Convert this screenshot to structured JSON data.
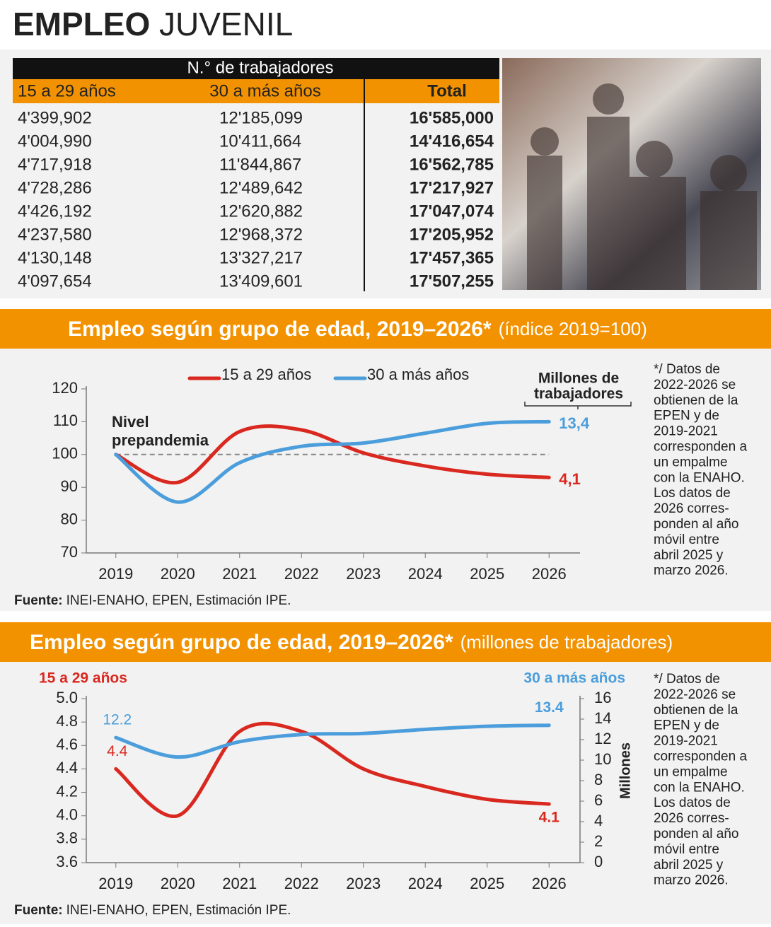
{
  "title": {
    "bold": "EMPLEO",
    "light": "JUVENIL"
  },
  "table": {
    "header": "N.° de trabajadores",
    "columns": [
      "15 a 29 años",
      "30 a más años",
      "Total"
    ],
    "rows": [
      [
        "4'399,902",
        "12'185,099",
        "16'585,000"
      ],
      [
        "4'004,990",
        "10'411,664",
        "14'416,654"
      ],
      [
        "4'717,918",
        "11'844,867",
        "16'562,785"
      ],
      [
        "4'728,286",
        "12'489,642",
        "17'217,927"
      ],
      [
        "4'426,192",
        "12'620,882",
        "17'047,074"
      ],
      [
        "4'237,580",
        "12'968,372",
        "17'205,952"
      ],
      [
        "4'130,148",
        "13'327,217",
        "17'457,365"
      ],
      [
        "4'097,654",
        "13'409,601",
        "17'507,255"
      ]
    ]
  },
  "chart_data": [
    {
      "type": "line",
      "title": "Empleo según grupo de edad, 2019–2026*",
      "subtitle": "(índice 2019=100)",
      "x": [
        2019,
        2020,
        2021,
        2022,
        2023,
        2024,
        2025,
        2026
      ],
      "xlim": [
        2018.5,
        2026.5
      ],
      "xticks": [
        2019,
        2020,
        2021,
        2022,
        2023,
        2024,
        2025,
        2026
      ],
      "ylim": [
        70,
        120
      ],
      "yticks": [
        70,
        80,
        90,
        100,
        110,
        120
      ],
      "reference_line": 100,
      "reference_label": [
        "Nivel",
        "prepandemia"
      ],
      "units_label": [
        "Millones de",
        "trabajadores"
      ],
      "series": [
        {
          "name": "15 a 29 años",
          "color": "#d9281f",
          "values": [
            100,
            91.5,
            107,
            107.5,
            100.5,
            96.5,
            94,
            93
          ],
          "end_label": "4,1"
        },
        {
          "name": "30 a más años",
          "color": "#4b9edb",
          "values": [
            100,
            85.5,
            97.5,
            102.5,
            103.5,
            106.5,
            109.5,
            110
          ],
          "end_label": "13,4"
        }
      ],
      "note": [
        "*/ Datos de",
        "2022-2026 se",
        "obtienen de la",
        "EPEN y de",
        "2019-2021",
        "corresponden a",
        "un empalme",
        "con la ENAHO.",
        "Los datos de",
        "2026 corres-",
        "ponden al año",
        "móvil entre",
        "abril 2025 y",
        "marzo 2026."
      ],
      "source_label": "Fuente:",
      "source": "INEI-ENAHO, EPEN, Estimación IPE."
    },
    {
      "type": "line",
      "title": "Empleo según grupo de edad, 2019–2026*",
      "subtitle": "(millones de trabajadores)",
      "x": [
        2019,
        2020,
        2021,
        2022,
        2023,
        2024,
        2025,
        2026
      ],
      "xlim": [
        2018.5,
        2026.5
      ],
      "xticks": [
        2019,
        2020,
        2021,
        2022,
        2023,
        2024,
        2025,
        2026
      ],
      "ylim": [
        3.6,
        5.0
      ],
      "yticks": [
        3.6,
        3.8,
        {
          "value": 4,
          "label": "4.0"
        },
        4.2,
        4.4,
        4.6,
        4.8,
        {
          "value": 5,
          "label": "5.0"
        }
      ],
      "ylabel": "15 a 29 años",
      "y2lim": [
        0,
        16
      ],
      "y2ticks": [
        0,
        2,
        4,
        6,
        8,
        10,
        12,
        14,
        16
      ],
      "y2label": "30 a más años",
      "y2title": "Millones",
      "series": [
        {
          "name": "15 a 29 años",
          "color": "#d9281f",
          "values": [
            4.4,
            4.0,
            4.72,
            4.72,
            4.4,
            4.25,
            4.14,
            4.1
          ]
        },
        {
          "name": "30 a más años",
          "color": "#4b9edb",
          "axis": "y2",
          "values": [
            12.2,
            10.3,
            11.8,
            12.5,
            12.6,
            13.0,
            13.3,
            13.4
          ]
        }
      ],
      "note": [
        "*/ Datos de",
        "2022-2026 se",
        "obtienen de la",
        "EPEN y de",
        "2019-2021",
        "corresponden a",
        "un empalme",
        "con la ENAHO.",
        "Los datos de",
        "2026 corres-",
        "ponden al año",
        "móvil entre",
        "abril 2025 y",
        "marzo 2026."
      ],
      "source_label": "Fuente:",
      "source": "INEI-ENAHO, EPEN, Estimación IPE."
    }
  ]
}
